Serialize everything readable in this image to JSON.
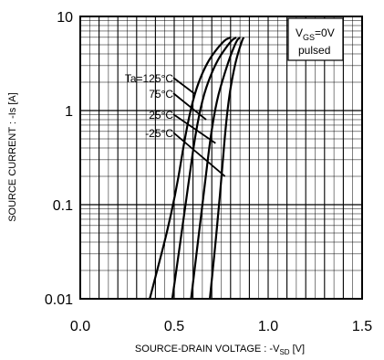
{
  "chart_data": {
    "type": "line",
    "xlabel_main": "SOURCE-DRAIN VOLTAGE : -V",
    "xlabel_sub": "SD",
    "xlabel_unit": " [V]",
    "ylabel": "SOURCE CURRENT : -Is [A]",
    "x_scale": "linear",
    "y_scale": "log",
    "xlim": [
      0.0,
      1.5
    ],
    "ylim": [
      0.01,
      10
    ],
    "x_ticks": [
      "0.0",
      "0.5",
      "1.0",
      "1.5"
    ],
    "y_ticks": [
      "0.01",
      "0.1",
      "1",
      "10"
    ],
    "grid": true,
    "annotation": {
      "line1_main": "V",
      "line1_sub": "GS",
      "line1_rest": "=0V",
      "line2": "pulsed"
    },
    "series": [
      {
        "name": "Ta=125°C",
        "x": [
          0.37,
          0.5,
          0.58,
          0.66,
          0.76,
          0.8
        ],
        "y": [
          0.01,
          0.1,
          1,
          3,
          5.5,
          6
        ]
      },
      {
        "name": "75°C",
        "x": [
          0.49,
          0.56,
          0.63,
          0.71,
          0.8,
          0.83
        ],
        "y": [
          0.01,
          0.1,
          1,
          3,
          5.5,
          6
        ]
      },
      {
        "name": "25°C",
        "x": [
          0.59,
          0.65,
          0.71,
          0.78,
          0.83,
          0.85
        ],
        "y": [
          0.01,
          0.1,
          1,
          3,
          5.5,
          6
        ]
      },
      {
        "name": "-25°C",
        "x": [
          0.69,
          0.74,
          0.78,
          0.82,
          0.86,
          0.87
        ],
        "y": [
          0.01,
          0.1,
          1,
          3,
          5.5,
          6
        ]
      }
    ]
  }
}
